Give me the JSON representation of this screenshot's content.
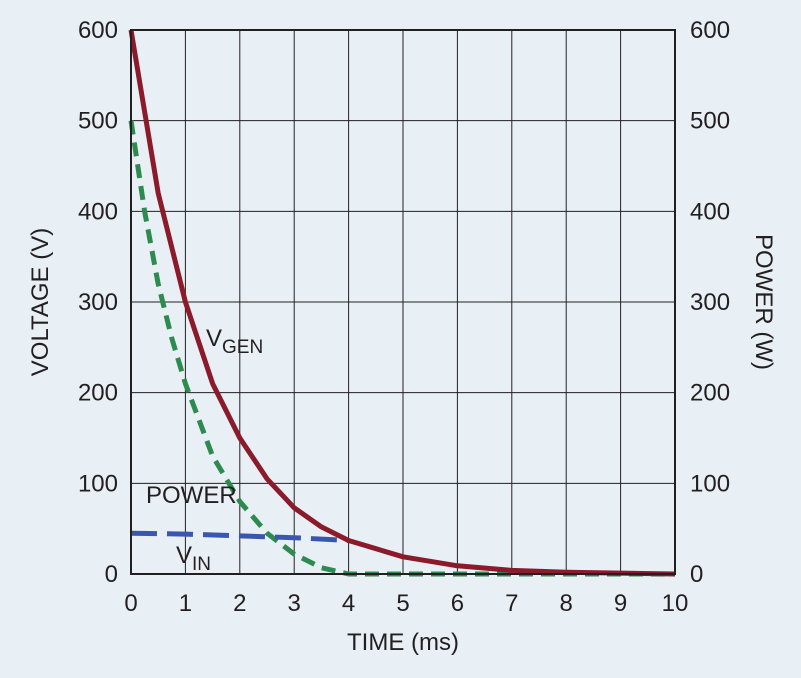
{
  "chart_data": {
    "type": "line",
    "title": "",
    "xlabel": "TIME (ms)",
    "ylabel_left": "VOLTAGE (V)",
    "ylabel_right": "POWER (W)",
    "xlim": [
      0,
      10
    ],
    "ylim_left": [
      0,
      600
    ],
    "ylim_right": [
      0,
      600
    ],
    "x_ticks": [
      "0",
      "1",
      "2",
      "3",
      "4",
      "5",
      "6",
      "7",
      "8",
      "9",
      "10"
    ],
    "y_ticks_left": [
      "0",
      "100",
      "200",
      "300",
      "400",
      "500",
      "600"
    ],
    "y_ticks_right": [
      "0",
      "100",
      "200",
      "300",
      "400",
      "500",
      "600"
    ],
    "grid": true,
    "series": [
      {
        "key": "vgen",
        "label_main": "V",
        "label_sub": "GEN",
        "color": "#8b1a2b",
        "dash": "solid",
        "axis": "left",
        "x": [
          0,
          0.5,
          1,
          1.5,
          2,
          2.5,
          3,
          3.5,
          4,
          5,
          6,
          7,
          8,
          9,
          10
        ],
        "y": [
          600,
          420,
          300,
          210,
          150,
          105,
          73,
          52,
          37,
          19,
          9,
          4,
          2,
          1,
          0
        ]
      },
      {
        "key": "power",
        "label": "POWER",
        "color": "#2e8b4f",
        "dash": "dashed",
        "axis": "right",
        "x": [
          0,
          0.25,
          0.5,
          0.75,
          1,
          1.25,
          1.5,
          2,
          2.5,
          3,
          3.5,
          4,
          5,
          6,
          7,
          8,
          9,
          10
        ],
        "y": [
          500,
          400,
          320,
          260,
          210,
          170,
          130,
          80,
          45,
          22,
          7,
          0,
          0,
          0,
          0,
          0,
          0,
          0
        ]
      },
      {
        "key": "vin",
        "label_main": "V",
        "label_sub": "IN",
        "color": "#3a56b0",
        "dash": "longdash",
        "axis": "left",
        "x": [
          0,
          1,
          2,
          3,
          4
        ],
        "y": [
          45,
          44,
          42,
          40,
          37
        ]
      }
    ]
  }
}
